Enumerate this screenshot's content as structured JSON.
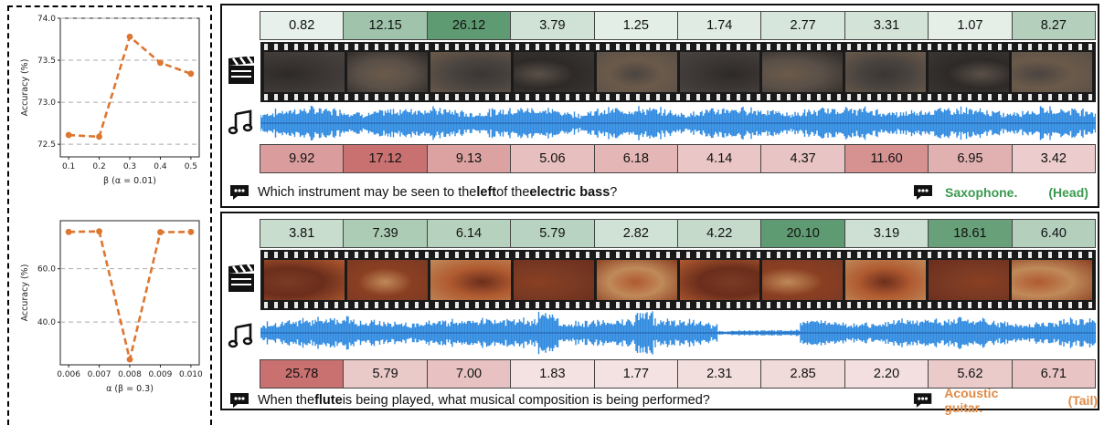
{
  "chart_data": [
    {
      "type": "line",
      "x": [
        0.1,
        0.2,
        0.3,
        0.4,
        0.5
      ],
      "y": [
        72.61,
        72.59,
        73.78,
        73.47,
        73.34
      ],
      "xlabel": "β (α = 0.01)",
      "ylabel": "Accuracy (%)",
      "ylim": [
        72.35,
        74.0
      ],
      "yticks": [
        "72.5",
        "73.0",
        "73.5",
        "74.0"
      ],
      "xticks": [
        "0.1",
        "0.2",
        "0.3",
        "0.4",
        "0.5"
      ],
      "color": "#dd7631",
      "grid": "horizontal dashed"
    },
    {
      "type": "line",
      "x": [
        0.006,
        0.007,
        0.008,
        0.009,
        0.01
      ],
      "y": [
        73.8,
        74.0,
        26.0,
        73.7,
        73.8
      ],
      "xlabel": "α (β = 0.3)",
      "ylabel": "Accuracy (%)",
      "ylim": [
        24,
        78
      ],
      "yticks": [
        "40.0",
        "60.0"
      ],
      "xticks": [
        "0.006",
        "0.007",
        "0.008",
        "0.009",
        "0.010"
      ],
      "color": "#dd7631",
      "grid": "horizontal dashed"
    }
  ],
  "examples": [
    {
      "visual_scores": [
        "0.82",
        "12.15",
        "26.12",
        "3.79",
        "1.25",
        "1.74",
        "2.77",
        "3.31",
        "1.07",
        "8.27"
      ],
      "audio_scores": [
        "9.92",
        "17.12",
        "9.13",
        "5.06",
        "6.18",
        "4.14",
        "4.37",
        "11.60",
        "6.95",
        "3.42"
      ],
      "question_pre": "Which instrument may be seen to the ",
      "question_b1": "left",
      "question_mid": " of the ",
      "question_b2": "electric bass",
      "question_post": "?",
      "answer": "Saxophone.",
      "tag": "(Head)",
      "answer_color": "#3a9a4e"
    },
    {
      "visual_scores": [
        "3.81",
        "7.39",
        "6.14",
        "5.79",
        "2.82",
        "4.22",
        "20.10",
        "3.19",
        "18.61",
        "6.40"
      ],
      "audio_scores": [
        "25.78",
        "5.79",
        "7.00",
        "1.83",
        "1.77",
        "2.31",
        "2.85",
        "2.20",
        "5.62",
        "6.71"
      ],
      "question_pre": "When the ",
      "question_b1": "flute",
      "question_mid": " is being played, what musical composition is being performed?",
      "question_b2": "",
      "question_post": "",
      "answer": "Acoustic guitar.",
      "tag": "(Tail)",
      "answer_color": "#e08a45"
    }
  ],
  "colors": {
    "wave": "#2f8ae0",
    "line": "#dd7631",
    "green": "#5f9b72",
    "red": "#c97070"
  }
}
